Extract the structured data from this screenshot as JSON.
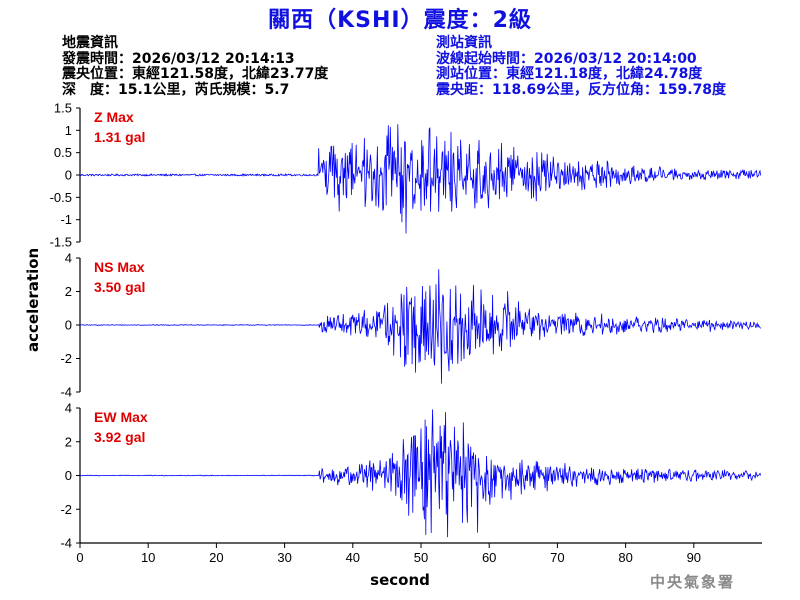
{
  "header": {
    "title": "關西（KSHI）震度：2級"
  },
  "quake_info": {
    "heading": "地震資訊",
    "origin_time": "發震時間：2026/03/12 20:14:13",
    "epicenter": "震央位置：東經121.58度，北緯23.77度",
    "depth_magnitude": "深　度：15.1公里，芮氏規模：5.7"
  },
  "station_info": {
    "heading": "測站資訊",
    "wave_start": "波線起始時間：2026/03/12 20:14:00",
    "station_location": "測站位置：東經121.18度，北緯24.78度",
    "distance_azimuth": "震央距：118.69公里，反方位角：159.78度"
  },
  "footer": {
    "agency": "中央氣象署"
  },
  "colors": {
    "title": "#1010e0",
    "trace": "#0000ff",
    "max_label": "#e00000",
    "station_text": "#1010e0"
  },
  "chart_data": {
    "type": "line",
    "xlabel": "second",
    "ylabel": "acceleration",
    "xlim": [
      0,
      100
    ],
    "x_ticks": [
      0,
      10,
      20,
      30,
      40,
      50,
      60,
      70,
      80,
      90
    ],
    "grid": false,
    "panels": [
      {
        "component": "Z",
        "max_label": "Z Max",
        "max_value": "1.31 gal",
        "peak": 1.31,
        "ylim": [
          -1.5,
          1.5
        ],
        "y_ticks": [
          -1.5,
          -1,
          -0.5,
          0,
          0.5,
          1,
          1.5
        ],
        "y_tick_labels": [
          "-1.5",
          "-1",
          "-0.5",
          "0",
          "0.5",
          "1",
          "1.5"
        ],
        "pre_event_noise": 0.02,
        "onset": 35,
        "envelope": [
          [
            35,
            0.7
          ],
          [
            37,
            0.85
          ],
          [
            40,
            0.9
          ],
          [
            45,
            1.15
          ],
          [
            48,
            1.25
          ],
          [
            52,
            1.2
          ],
          [
            56,
            0.95
          ],
          [
            62,
            0.7
          ],
          [
            70,
            0.45
          ],
          [
            80,
            0.25
          ],
          [
            90,
            0.14
          ],
          [
            99.8,
            0.12
          ]
        ]
      },
      {
        "component": "NS",
        "max_label": "NS Max",
        "max_value": "3.50 gal",
        "peak": 3.5,
        "ylim": [
          -4,
          4
        ],
        "y_ticks": [
          -4,
          -2,
          0,
          2,
          4
        ],
        "y_tick_labels": [
          "-4",
          "-2",
          "0",
          "2",
          "4"
        ],
        "pre_event_noise": 0.02,
        "onset": 35,
        "envelope": [
          [
            35,
            0.4
          ],
          [
            40,
            0.75
          ],
          [
            45,
            1.2
          ],
          [
            48,
            2.3
          ],
          [
            52,
            3.2
          ],
          [
            55,
            2.6
          ],
          [
            60,
            1.8
          ],
          [
            65,
            1.0
          ],
          [
            70,
            0.7
          ],
          [
            80,
            0.45
          ],
          [
            90,
            0.3
          ],
          [
            99.8,
            0.2
          ]
        ]
      },
      {
        "component": "EW",
        "max_label": "EW Max",
        "max_value": "3.92 gal",
        "peak": 3.92,
        "ylim": [
          -4,
          4
        ],
        "y_ticks": [
          -4,
          -2,
          0,
          2,
          4
        ],
        "y_tick_labels": [
          "-4",
          "-2",
          "0",
          "2",
          "4"
        ],
        "pre_event_noise": 0.02,
        "onset": 35,
        "envelope": [
          [
            35,
            0.35
          ],
          [
            40,
            0.6
          ],
          [
            45,
            0.9
          ],
          [
            49,
            2.4
          ],
          [
            52,
            3.5
          ],
          [
            55,
            3.0
          ],
          [
            60,
            1.7
          ],
          [
            65,
            0.9
          ],
          [
            70,
            0.6
          ],
          [
            80,
            0.4
          ],
          [
            90,
            0.3
          ],
          [
            99.8,
            0.25
          ]
        ]
      }
    ]
  }
}
